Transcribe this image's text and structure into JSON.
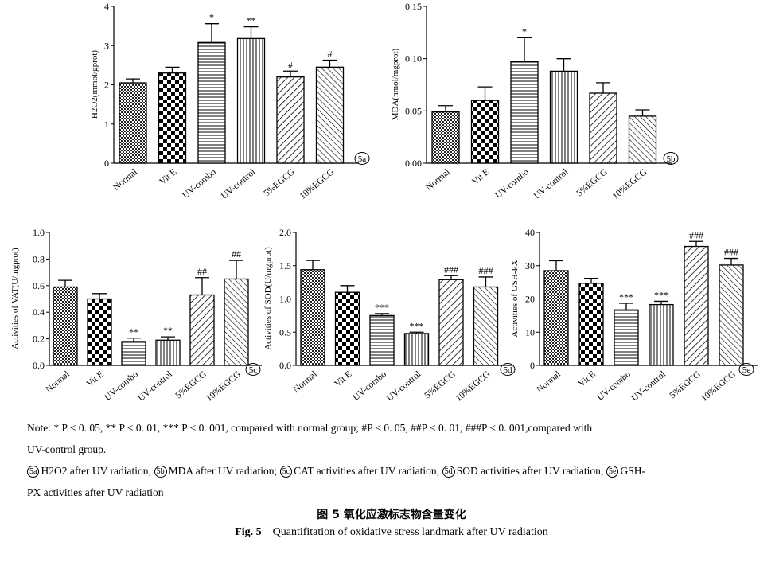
{
  "chart_data": [
    {
      "type": "bar",
      "panel": "5a",
      "categories": [
        "Normal",
        "Vit E",
        "UV-combo",
        "UV-control",
        "5%EGCG",
        "10%EGCG"
      ],
      "values": [
        2.05,
        2.3,
        3.08,
        3.18,
        2.2,
        2.45
      ],
      "errors": [
        0.1,
        0.15,
        0.48,
        0.3,
        0.15,
        0.18
      ],
      "markers": [
        "",
        "",
        "*",
        "**",
        "#",
        "#"
      ],
      "ylabel": "H2O2(mmol/gprot)",
      "ylim": [
        0,
        4
      ],
      "yticks": [
        0,
        1,
        2,
        3,
        4
      ],
      "ytick_labels": [
        "0",
        "1",
        "2",
        "3",
        "4"
      ]
    },
    {
      "type": "bar",
      "panel": "5b",
      "categories": [
        "Normal",
        "Vit E",
        "UV-combo",
        "UV-control",
        "5%EGCG",
        "10%EGCG"
      ],
      "values": [
        0.049,
        0.06,
        0.097,
        0.088,
        0.067,
        0.045
      ],
      "errors": [
        0.006,
        0.013,
        0.023,
        0.012,
        0.01,
        0.006
      ],
      "markers": [
        "",
        "",
        "*",
        "",
        "",
        ""
      ],
      "ylabel": "MDA(nmol/mgprot)",
      "ylim": [
        0,
        0.15
      ],
      "yticks": [
        0,
        0.05,
        0.1,
        0.15
      ],
      "ytick_labels": [
        "0.00",
        "0.05",
        "0.10",
        "0.15"
      ]
    },
    {
      "type": "bar",
      "panel": "5c",
      "categories": [
        "Normal",
        "Vit E",
        "UV-combo",
        "UV-control",
        "5%EGCG",
        "10%EGCG"
      ],
      "values": [
        0.59,
        0.5,
        0.18,
        0.19,
        0.53,
        0.65
      ],
      "errors": [
        0.05,
        0.04,
        0.025,
        0.025,
        0.13,
        0.14
      ],
      "markers": [
        "",
        "",
        "**",
        "**",
        "##",
        "##"
      ],
      "ylabel": "Activities of VAT(U/mgprot)",
      "ylim": [
        0,
        1
      ],
      "yticks": [
        0,
        0.2,
        0.4,
        0.6,
        0.8,
        1
      ],
      "ytick_labels": [
        "0.0",
        "0.2",
        "0.4",
        "0.6",
        "0.8",
        "1.0"
      ]
    },
    {
      "type": "bar",
      "panel": "5d",
      "categories": [
        "Normal",
        "Vit E",
        "UV-combo",
        "UV-control",
        "5%EGCG",
        "10%EGCG"
      ],
      "values": [
        1.44,
        1.1,
        0.75,
        0.48,
        1.29,
        1.18
      ],
      "errors": [
        0.14,
        0.1,
        0.03,
        0.02,
        0.06,
        0.15
      ],
      "markers": [
        "",
        "",
        "***",
        "***",
        "###",
        "###"
      ],
      "ylabel": "Activities of SOD(U/mgprot)",
      "ylim": [
        0,
        2
      ],
      "yticks": [
        0,
        0.5,
        1,
        1.5,
        2
      ],
      "ytick_labels": [
        "0.0",
        "0.5",
        "1.0",
        "1.5",
        "2.0"
      ]
    },
    {
      "type": "bar",
      "panel": "5e",
      "categories": [
        "Normal",
        "Vit E",
        "UV-combo",
        "UV-control",
        "5%EGCG",
        "10%EGCG"
      ],
      "values": [
        28.5,
        24.7,
        16.7,
        18.3,
        35.8,
        30.2
      ],
      "errors": [
        3,
        1.5,
        2.0,
        1.0,
        1.5,
        2.0
      ],
      "markers": [
        "",
        "",
        "***",
        "***",
        "###",
        "###"
      ],
      "ylabel": "Activities of GSH-PX",
      "ylim": [
        0,
        40
      ],
      "yticks": [
        0,
        10,
        20,
        30,
        40
      ],
      "ytick_labels": [
        "0",
        "10",
        "20",
        "30",
        "40"
      ]
    }
  ],
  "notes": {
    "line1": "Note: * P < 0. 05,  ** P < 0. 01,  *** P < 0. 001, compared with normal group; #P < 0. 05, ##P < 0. 01, ###P < 0. 001,compared with",
    "line2": "UV-control group.",
    "legend_a_tag": "5a",
    "legend_a": "H2O2 after UV radiation;",
    "legend_b_tag": "5b",
    "legend_b": "MDA after UV radiation;",
    "legend_c_tag": "5c",
    "legend_c": "CAT activities after UV radiation;",
    "legend_d_tag": "5d",
    "legend_d": "SOD activities after UV radiation;",
    "legend_e_tag": "5e",
    "legend_e": "GSH-",
    "legend_e2": "PX activities after UV radiation"
  },
  "caption": {
    "zh": "图 5    氧化应激标志物含量变化",
    "en_label": "Fig. 5",
    "en_text": "Quantifitation of oxidative stress landmark after UV radiation"
  }
}
